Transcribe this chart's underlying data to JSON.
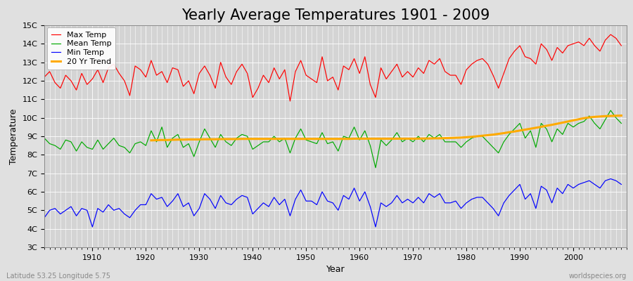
{
  "title": "Yearly Average Temperatures 1901 - 2009",
  "xlabel": "Year",
  "ylabel": "Temperature",
  "subtitle_left": "Latitude 53.25 Longitude 5.75",
  "subtitle_right": "worldspecies.org",
  "years": [
    1901,
    1902,
    1903,
    1904,
    1905,
    1906,
    1907,
    1908,
    1909,
    1910,
    1911,
    1912,
    1913,
    1914,
    1915,
    1916,
    1917,
    1918,
    1919,
    1920,
    1921,
    1922,
    1923,
    1924,
    1925,
    1926,
    1927,
    1928,
    1929,
    1930,
    1931,
    1932,
    1933,
    1934,
    1935,
    1936,
    1937,
    1938,
    1939,
    1940,
    1941,
    1942,
    1943,
    1944,
    1945,
    1946,
    1947,
    1948,
    1949,
    1950,
    1951,
    1952,
    1953,
    1954,
    1955,
    1956,
    1957,
    1958,
    1959,
    1960,
    1961,
    1962,
    1963,
    1964,
    1965,
    1966,
    1967,
    1968,
    1969,
    1970,
    1971,
    1972,
    1973,
    1974,
    1975,
    1976,
    1977,
    1978,
    1979,
    1980,
    1981,
    1982,
    1983,
    1984,
    1985,
    1986,
    1987,
    1988,
    1989,
    1990,
    1991,
    1992,
    1993,
    1994,
    1995,
    1996,
    1997,
    1998,
    1999,
    2000,
    2001,
    2002,
    2003,
    2004,
    2005,
    2006,
    2007,
    2008,
    2009
  ],
  "max_temp": [
    12.2,
    12.5,
    11.9,
    11.6,
    12.3,
    12.0,
    11.5,
    12.4,
    11.8,
    12.1,
    12.6,
    11.9,
    12.7,
    12.9,
    12.4,
    12.0,
    11.2,
    12.8,
    12.6,
    12.2,
    13.1,
    12.3,
    12.5,
    11.9,
    12.7,
    12.6,
    11.7,
    12.0,
    11.3,
    12.4,
    12.8,
    12.3,
    11.6,
    13.0,
    12.2,
    11.8,
    12.5,
    12.9,
    12.4,
    11.1,
    11.6,
    12.3,
    11.9,
    12.7,
    12.1,
    12.6,
    10.9,
    12.5,
    13.1,
    12.3,
    12.1,
    11.9,
    13.3,
    12.0,
    12.2,
    11.5,
    12.8,
    12.6,
    13.2,
    12.4,
    13.3,
    11.8,
    11.1,
    12.7,
    12.1,
    12.5,
    12.9,
    12.2,
    12.5,
    12.2,
    12.7,
    12.4,
    13.1,
    12.9,
    13.2,
    12.5,
    12.3,
    12.3,
    11.8,
    12.6,
    12.9,
    13.1,
    13.2,
    12.9,
    12.3,
    11.6,
    12.4,
    13.2,
    13.6,
    13.9,
    13.3,
    13.2,
    12.9,
    14.0,
    13.7,
    13.1,
    13.8,
    13.5,
    13.9,
    14.0,
    14.1,
    13.9,
    14.3,
    13.9,
    13.6,
    14.2,
    14.5,
    14.3,
    13.9
  ],
  "mean_temp": [
    8.9,
    8.6,
    8.5,
    8.3,
    8.8,
    8.7,
    8.2,
    8.7,
    8.4,
    8.3,
    8.8,
    8.3,
    8.6,
    8.9,
    8.5,
    8.4,
    8.1,
    8.6,
    8.7,
    8.5,
    9.3,
    8.7,
    9.5,
    8.4,
    8.9,
    9.1,
    8.4,
    8.6,
    7.9,
    8.7,
    9.4,
    8.9,
    8.4,
    9.1,
    8.7,
    8.5,
    8.9,
    9.1,
    9.0,
    8.3,
    8.5,
    8.7,
    8.7,
    9.0,
    8.7,
    8.9,
    8.1,
    8.9,
    9.4,
    8.8,
    8.7,
    8.6,
    9.2,
    8.6,
    8.7,
    8.2,
    9.0,
    8.9,
    9.5,
    8.8,
    9.3,
    8.5,
    7.3,
    8.8,
    8.5,
    8.8,
    9.2,
    8.7,
    8.9,
    8.7,
    9.0,
    8.7,
    9.1,
    8.9,
    9.1,
    8.7,
    8.7,
    8.7,
    8.4,
    8.7,
    8.9,
    9.0,
    9.0,
    8.7,
    8.4,
    8.1,
    8.7,
    9.1,
    9.4,
    9.7,
    8.9,
    9.3,
    8.4,
    9.7,
    9.4,
    8.7,
    9.4,
    9.1,
    9.7,
    9.5,
    9.7,
    9.8,
    10.1,
    9.7,
    9.4,
    9.9,
    10.4,
    10.0,
    9.7
  ],
  "min_temp": [
    4.6,
    5.0,
    5.1,
    4.8,
    5.0,
    5.2,
    4.7,
    5.1,
    5.0,
    4.1,
    5.1,
    4.9,
    5.3,
    5.0,
    5.1,
    4.8,
    4.6,
    5.0,
    5.3,
    5.3,
    5.9,
    5.6,
    5.7,
    5.2,
    5.5,
    5.9,
    5.2,
    5.4,
    4.7,
    5.1,
    5.9,
    5.6,
    5.1,
    5.8,
    5.4,
    5.3,
    5.6,
    5.8,
    5.7,
    4.8,
    5.1,
    5.4,
    5.2,
    5.7,
    5.3,
    5.6,
    4.7,
    5.6,
    6.1,
    5.5,
    5.5,
    5.3,
    6.0,
    5.5,
    5.4,
    5.0,
    5.8,
    5.6,
    6.2,
    5.5,
    6.0,
    5.2,
    4.1,
    5.4,
    5.2,
    5.4,
    5.8,
    5.4,
    5.6,
    5.4,
    5.7,
    5.4,
    5.9,
    5.7,
    5.9,
    5.4,
    5.4,
    5.5,
    5.1,
    5.4,
    5.6,
    5.7,
    5.7,
    5.4,
    5.1,
    4.7,
    5.4,
    5.8,
    6.1,
    6.4,
    5.6,
    5.9,
    5.1,
    6.3,
    6.1,
    5.4,
    6.2,
    5.9,
    6.4,
    6.2,
    6.4,
    6.5,
    6.6,
    6.4,
    6.2,
    6.6,
    6.7,
    6.6,
    6.4
  ],
  "trend_years": [
    1921,
    1922,
    1923,
    1924,
    1925,
    1926,
    1927,
    1928,
    1929,
    1930,
    1931,
    1932,
    1933,
    1934,
    1935,
    1936,
    1937,
    1938,
    1939,
    1940,
    1941,
    1942,
    1943,
    1944,
    1945,
    1946,
    1947,
    1948,
    1949,
    1950,
    1951,
    1952,
    1953,
    1954,
    1955,
    1956,
    1957,
    1958,
    1959,
    1960,
    1961,
    1962,
    1963,
    1964,
    1965,
    1966,
    1967,
    1968,
    1969,
    1970,
    1971,
    1972,
    1973,
    1974,
    1975,
    1976,
    1977,
    1978,
    1979,
    1980,
    1981,
    1982,
    1983,
    1984,
    1985,
    1986,
    1987,
    1988,
    1989,
    1990,
    1991,
    1992,
    1993,
    1994,
    1995,
    1996,
    1997,
    1998,
    1999,
    2000,
    2001,
    2002,
    2003,
    2004,
    2005,
    2006,
    2007,
    2008,
    2009
  ],
  "trend_vals": [
    8.78,
    8.79,
    8.8,
    8.8,
    8.81,
    8.82,
    8.82,
    8.83,
    8.83,
    8.83,
    8.84,
    8.84,
    8.84,
    8.85,
    8.85,
    8.85,
    8.85,
    8.86,
    8.86,
    8.86,
    8.86,
    8.86,
    8.86,
    8.86,
    8.86,
    8.86,
    8.86,
    8.86,
    8.86,
    8.86,
    8.86,
    8.86,
    8.86,
    8.86,
    8.86,
    8.86,
    8.86,
    8.86,
    8.87,
    8.87,
    8.87,
    8.87,
    8.87,
    8.87,
    8.87,
    8.87,
    8.87,
    8.87,
    8.87,
    8.87,
    8.87,
    8.88,
    8.88,
    8.89,
    8.89,
    8.9,
    8.91,
    8.92,
    8.93,
    8.95,
    8.97,
    9.0,
    9.03,
    9.06,
    9.09,
    9.13,
    9.17,
    9.22,
    9.26,
    9.31,
    9.36,
    9.41,
    9.46,
    9.51,
    9.57,
    9.62,
    9.68,
    9.74,
    9.8,
    9.86,
    9.92,
    9.98,
    10.02,
    10.05,
    10.07,
    10.09,
    10.1,
    10.11,
    10.12
  ],
  "max_color": "#ff0000",
  "mean_color": "#00aa00",
  "min_color": "#0000ff",
  "trend_color": "#ffaa00",
  "bg_color": "#e0e0e0",
  "plot_bg_color": "#d4d4d4",
  "grid_color": "#ffffff",
  "ylim": [
    3,
    15
  ],
  "yticks": [
    3,
    4,
    5,
    6,
    7,
    8,
    9,
    10,
    11,
    12,
    13,
    14,
    15
  ],
  "ytick_labels": [
    "3C",
    "4C",
    "5C",
    "6C",
    "7C",
    "8C",
    "9C",
    "10C",
    "11C",
    "12C",
    "13C",
    "14C",
    "15C"
  ],
  "title_fontsize": 15,
  "axis_label_fontsize": 9,
  "tick_fontsize": 8,
  "legend_fontsize": 8
}
